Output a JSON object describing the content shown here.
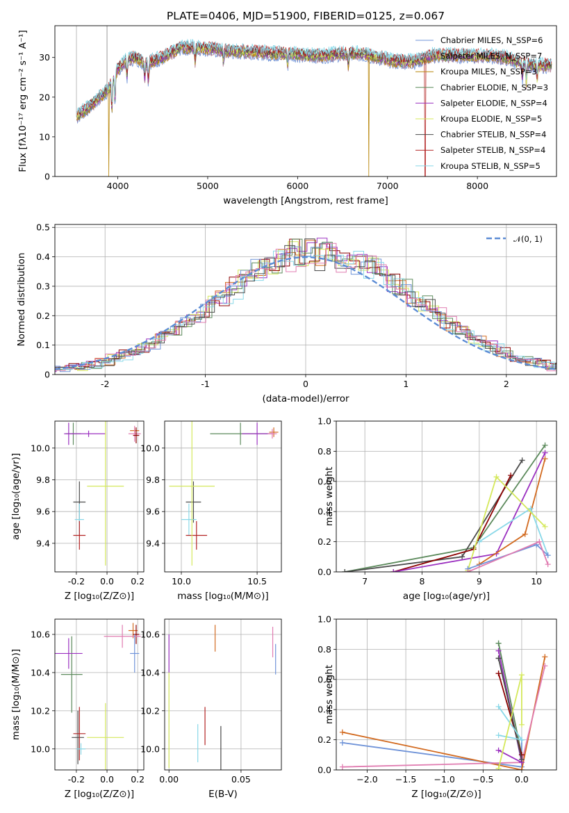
{
  "chart_data": [
    {
      "type": "line",
      "title": "PLATE=0406, MJD=51900, FIBERID=0125, z=0.067",
      "xlabel": "wavelength [Angstrom, rest frame]",
      "ylabel": "Flux [fλ10⁻¹⁷ erg cm⁻² s⁻¹ A⁻¹]",
      "xlim": [
        3300,
        8880
      ],
      "ylim": [
        0,
        38
      ],
      "xticks": [
        4000,
        5000,
        6000,
        7000,
        8000
      ],
      "yticks": [
        0,
        10,
        20,
        30
      ],
      "grid": false,
      "legend_position": "top-right",
      "spectrum_continuum": {
        "x": [
          3530,
          3650,
          3800,
          3900,
          4000,
          4100,
          4200,
          4300,
          4500,
          4700,
          4900,
          5100,
          5300,
          5500,
          5700,
          5900,
          6100,
          6300,
          6500,
          6700,
          6900,
          7100,
          7300,
          7500,
          7700,
          7900,
          8100,
          8300,
          8500,
          8700
        ],
        "y": [
          15,
          17,
          20,
          22,
          27,
          29.5,
          30,
          28.5,
          30,
          32.5,
          32.5,
          32,
          31.5,
          31.5,
          31,
          31,
          30.5,
          30.5,
          31,
          31,
          30,
          29,
          29,
          30.5,
          30.5,
          30.5,
          30.5,
          30,
          28.5,
          28
        ]
      },
      "series": [
        {
          "name": "Chabrier MILES, N_SSP=6",
          "color": "#6f93d8"
        },
        {
          "name": "Salpeter MILES, N_SSP=7",
          "color": "#b07a8e"
        },
        {
          "name": "Kroupa MILES, N_SSP=3",
          "color": "#b8860b"
        },
        {
          "name": "Chabrier ELODIE, N_SSP=3",
          "color": "#5c8a5c"
        },
        {
          "name": "Salpeter ELODIE, N_SSP=4",
          "color": "#9b30c0"
        },
        {
          "name": "Kroupa ELODIE, N_SSP=5",
          "color": "#d4e85a"
        },
        {
          "name": "Chabrier STELIB, N_SSP=4",
          "color": "#4a4a4a"
        },
        {
          "name": "Salpeter STELIB, N_SSP=4",
          "color": "#b22222"
        },
        {
          "name": "Kroupa STELIB, N_SSP=5",
          "color": "#88d8e8"
        }
      ]
    },
    {
      "type": "histogram",
      "xlabel": "(data-model)/error",
      "ylabel": "Normed distribution",
      "xlim": [
        -2.5,
        2.5
      ],
      "ylim": [
        0,
        0.51
      ],
      "xticks": [
        -2,
        -1,
        0,
        1,
        2
      ],
      "yticks": [
        0.0,
        0.1,
        0.2,
        0.3,
        0.4,
        0.5
      ],
      "grid": true,
      "legend_position": "top-right",
      "reference_curve": {
        "name": "𝒩(0, 1)",
        "color": "#5b8bd4",
        "style": "dashed"
      },
      "series_colors": [
        "#d2691e",
        "#9b30c0",
        "#d4e85a",
        "#8b0000",
        "#6f93d8",
        "#5c8a5c",
        "#88d8e8",
        "#4a4a4a",
        "#e07bb0"
      ]
    },
    {
      "type": "scatter",
      "xlabel": "Z [log₁₀(Z/Z⊙)]",
      "ylabel": "age  [log₁₀(age/yr)]",
      "xlim": [
        -0.34,
        0.24
      ],
      "ylim": [
        9.22,
        10.17
      ],
      "xticks": [
        "-0.2",
        "0.0",
        "0.2"
      ],
      "yticks": [
        "9.4",
        "9.6",
        "9.8",
        "10.0"
      ],
      "grid": true,
      "points": [
        {
          "x": -0.22,
          "y": 10.09,
          "xerr": 0.05,
          "yerr": 0.07,
          "color": "#5c8a5c"
        },
        {
          "x": -0.25,
          "y": 10.09,
          "xerr": 0.03,
          "yerr": 0.07,
          "color": "#9b30c0"
        },
        {
          "x": -0.12,
          "y": 10.09,
          "xerr": 0.11,
          "yerr": 0.02,
          "color": "#9b30c0"
        },
        {
          "x": 0.18,
          "y": 10.11,
          "xerr": 0.03,
          "yerr": 0.02,
          "color": "#d2691e"
        },
        {
          "x": 0.18,
          "y": 10.09,
          "xerr": 0.04,
          "yerr": 0.05,
          "color": "#e07bb0"
        },
        {
          "x": 0.19,
          "y": 10.08,
          "xerr": 0.02,
          "yerr": 0.05,
          "color": "#8b0000"
        },
        {
          "x": -0.18,
          "y": 9.66,
          "xerr": 0.04,
          "yerr": 0.13,
          "color": "#4a4a4a"
        },
        {
          "x": -0.18,
          "y": 9.55,
          "xerr": 0.03,
          "yerr": 0.1,
          "color": "#88d8e8"
        },
        {
          "x": -0.18,
          "y": 9.45,
          "xerr": 0.04,
          "yerr": 0.09,
          "color": "#b22222"
        },
        {
          "x": -0.01,
          "y": 9.76,
          "xerr": 0.12,
          "yerr": 0.5,
          "color": "#d4e85a"
        }
      ]
    },
    {
      "type": "scatter",
      "xlabel": "mass [log₁₀(M/M⊙)]",
      "xlim": [
        9.89,
        10.66
      ],
      "ylim": [
        9.22,
        10.17
      ],
      "xticks": [
        "10.0",
        "10.5"
      ],
      "yticks": [
        "9.4",
        "9.6",
        "9.8",
        "10.0"
      ],
      "grid": true,
      "points": [
        {
          "x": 10.39,
          "y": 10.09,
          "xerr": 0.2,
          "yerr": 0.07,
          "color": "#5c8a5c"
        },
        {
          "x": 10.5,
          "y": 10.09,
          "xerr": 0.1,
          "yerr": 0.07,
          "color": "#9b30c0"
        },
        {
          "x": 10.61,
          "y": 10.1,
          "xerr": 0.03,
          "yerr": 0.03,
          "color": "#d2691e"
        },
        {
          "x": 10.6,
          "y": 10.09,
          "xerr": 0.03,
          "yerr": 0.03,
          "color": "#e07bb0"
        },
        {
          "x": 10.08,
          "y": 9.66,
          "xerr": 0.05,
          "yerr": 0.13,
          "color": "#4a4a4a"
        },
        {
          "x": 10.05,
          "y": 9.55,
          "xerr": 0.05,
          "yerr": 0.1,
          "color": "#88d8e8"
        },
        {
          "x": 10.1,
          "y": 9.45,
          "xerr": 0.07,
          "yerr": 0.09,
          "color": "#b22222"
        },
        {
          "x": 10.07,
          "y": 9.76,
          "xerr": 0.15,
          "yerr": 0.5,
          "color": "#d4e85a"
        }
      ]
    },
    {
      "type": "line",
      "xlabel": "age  [log₁₀(age/yr)]",
      "ylabel": "mass weight",
      "xlim": [
        6.5,
        10.35
      ],
      "ylim": [
        0,
        1
      ],
      "xticks": [
        "7",
        "8",
        "9",
        "10"
      ],
      "yticks": [
        "0.0",
        "0.2",
        "0.4",
        "0.6",
        "0.8",
        "1.0"
      ],
      "grid": true,
      "series": [
        {
          "color": "#5c8a5c",
          "x": [
            6.65,
            8.9,
            10.15
          ],
          "y": [
            0.0,
            0.16,
            0.84
          ]
        },
        {
          "color": "#4a4a4a",
          "x": [
            6.65,
            8.7,
            9.75
          ],
          "y": [
            0.0,
            0.1,
            0.74
          ]
        },
        {
          "color": "#8b0000",
          "x": [
            7.5,
            8.9,
            9.55
          ],
          "y": [
            0.0,
            0.15,
            0.64
          ]
        },
        {
          "color": "#9b30c0",
          "x": [
            7.5,
            9.3,
            10.15
          ],
          "y": [
            0.0,
            0.12,
            0.79
          ]
        },
        {
          "color": "#d2691e",
          "x": [
            9.0,
            9.8,
            10.15
          ],
          "y": [
            0.05,
            0.25,
            0.75
          ]
        },
        {
          "color": "#88d8e8",
          "x": [
            9.0,
            9.9,
            10.2
          ],
          "y": [
            0.2,
            0.42,
            0.11
          ]
        },
        {
          "color": "#d4e85a",
          "x": [
            8.8,
            9.3,
            10.15
          ],
          "y": [
            0.01,
            0.63,
            0.3
          ]
        },
        {
          "color": "#6f93d8",
          "x": [
            8.8,
            10.0,
            10.2
          ],
          "y": [
            0.02,
            0.18,
            0.11
          ]
        },
        {
          "color": "#e07bb0",
          "x": [
            8.8,
            10.05,
            10.2
          ],
          "y": [
            0.0,
            0.2,
            0.05
          ]
        }
      ]
    },
    {
      "type": "scatter",
      "xlabel": "Z [log₁₀(Z/Z⊙)]",
      "ylabel": "mass [log₁₀(M/M⊙)]",
      "xlim": [
        -0.34,
        0.24
      ],
      "ylim": [
        9.89,
        10.68
      ],
      "xticks": [
        "-0.2",
        "0.0",
        "0.2"
      ],
      "yticks": [
        "10.0",
        "10.2",
        "10.4",
        "10.6"
      ],
      "grid": true,
      "points": [
        {
          "x": -0.23,
          "y": 10.39,
          "xerr": 0.07,
          "yerr": 0.2,
          "color": "#5c8a5c"
        },
        {
          "x": -0.25,
          "y": 10.5,
          "xerr": 0.09,
          "yerr": 0.08,
          "color": "#9b30c0"
        },
        {
          "x": 0.17,
          "y": 10.62,
          "xerr": 0.03,
          "yerr": 0.04,
          "color": "#d2691e"
        },
        {
          "x": 0.19,
          "y": 10.6,
          "xerr": 0.02,
          "yerr": 0.05,
          "color": "#8b0000"
        },
        {
          "x": 0.1,
          "y": 10.59,
          "xerr": 0.12,
          "yerr": 0.06,
          "color": "#e07bb0"
        },
        {
          "x": 0.18,
          "y": 10.5,
          "xerr": 0.03,
          "yerr": 0.1,
          "color": "#6f93d8"
        },
        {
          "x": -0.19,
          "y": 10.06,
          "xerr": 0.04,
          "yerr": 0.14,
          "color": "#4a4a4a"
        },
        {
          "x": -0.18,
          "y": 10.08,
          "xerr": 0.04,
          "yerr": 0.14,
          "color": "#b22222"
        },
        {
          "x": -0.17,
          "y": 10.0,
          "xerr": 0.03,
          "yerr": 0.03,
          "color": "#88d8e8"
        },
        {
          "x": -0.01,
          "y": 10.06,
          "xerr": 0.12,
          "yerr": 0.18,
          "color": "#d4e85a"
        }
      ]
    },
    {
      "type": "scatter",
      "xlabel": "E(B-V)",
      "xlim": [
        -0.003,
        0.078
      ],
      "ylim": [
        9.89,
        10.68
      ],
      "xticks": [
        "0.00",
        "0.05"
      ],
      "yticks": [
        "10.0",
        "10.2",
        "10.4",
        "10.6"
      ],
      "grid": true,
      "points": [
        {
          "x": 0.0,
          "y": 10.5,
          "xerr": 0,
          "yerr": 0.1,
          "color": "#9b30c0"
        },
        {
          "x": 0.0,
          "y": 10.15,
          "xerr": 0,
          "yerr": 0.25,
          "color": "#d4e85a"
        },
        {
          "x": 0.032,
          "y": 10.58,
          "xerr": 0,
          "yerr": 0.07,
          "color": "#d2691e"
        },
        {
          "x": 0.072,
          "y": 10.56,
          "xerr": 0,
          "yerr": 0.08,
          "color": "#e07bb0"
        },
        {
          "x": 0.074,
          "y": 10.47,
          "xerr": 0,
          "yerr": 0.08,
          "color": "#6f93d8"
        },
        {
          "x": 0.025,
          "y": 10.12,
          "xerr": 0,
          "yerr": 0.1,
          "color": "#b22222"
        },
        {
          "x": 0.02,
          "y": 10.03,
          "xerr": 0,
          "yerr": 0.1,
          "color": "#88d8e8"
        },
        {
          "x": 0.036,
          "y": 10.0,
          "xerr": 0,
          "yerr": 0.12,
          "color": "#4a4a4a"
        }
      ]
    },
    {
      "type": "line",
      "xlabel": "Z [log₁₀(Z/Z⊙)]",
      "ylabel": "mass weight",
      "xlim": [
        -2.4,
        0.45
      ],
      "ylim": [
        0,
        1
      ],
      "xticks": [
        "−2.0",
        "−1.5",
        "−1.0",
        "−0.5",
        "0.0"
      ],
      "yticks": [
        "0.0",
        "0.2",
        "0.4",
        "0.6",
        "0.8",
        "1.0"
      ],
      "grid": true,
      "series": [
        {
          "color": "#6f93d8",
          "x": [
            -2.32,
            0.0,
            0.0
          ],
          "y": [
            0.18,
            0.02,
            0.2
          ]
        },
        {
          "color": "#d2691e",
          "x": [
            -2.32,
            0.0,
            0.3
          ],
          "y": [
            0.25,
            0.0,
            0.75
          ]
        },
        {
          "color": "#e07bb0",
          "x": [
            -2.32,
            0.0,
            0.3
          ],
          "y": [
            0.02,
            0.05,
            0.69
          ]
        },
        {
          "color": "#5c8a5c",
          "x": [
            -0.3,
            0.0,
            -0.3
          ],
          "y": [
            0.84,
            0.1,
            0.84
          ]
        },
        {
          "color": "#9b30c0",
          "x": [
            -0.3,
            0.0,
            -0.3
          ],
          "y": [
            0.79,
            0.05,
            0.13
          ]
        },
        {
          "color": "#8b0000",
          "x": [
            -0.3,
            0.0,
            -0.3
          ],
          "y": [
            0.64,
            0.1,
            0.64
          ]
        },
        {
          "color": "#4a4a4a",
          "x": [
            -0.3,
            0.0,
            -0.3
          ],
          "y": [
            0.74,
            0.07,
            0.74
          ]
        },
        {
          "color": "#88d8e8",
          "x": [
            -0.3,
            0.0,
            -0.3
          ],
          "y": [
            0.42,
            0.2,
            0.23
          ]
        },
        {
          "color": "#d4e85a",
          "x": [
            -0.3,
            0.0,
            0.0
          ],
          "y": [
            0.01,
            0.63,
            0.3
          ]
        }
      ]
    }
  ]
}
